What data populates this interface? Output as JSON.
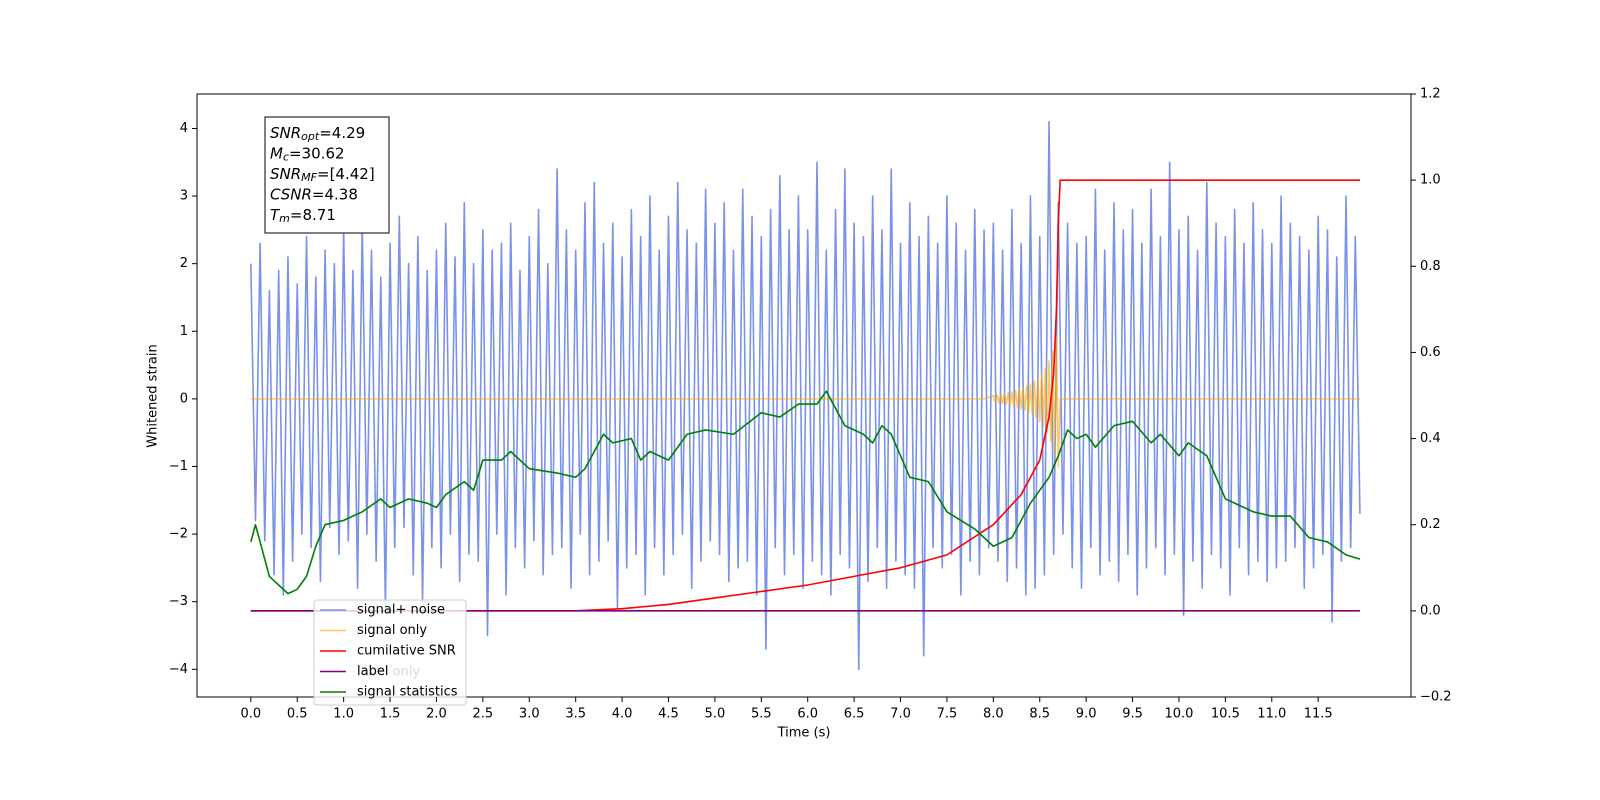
{
  "chart_data": {
    "type": "line",
    "xlabel": "Time (s)",
    "ylabel": "Whitened strain",
    "xlim": [
      -0.58,
      12.5
    ],
    "ylim": [
      -4.41,
      4.51
    ],
    "y2lim": [
      -0.2,
      1.2
    ],
    "xticks": [
      {
        "value": 0,
        "label": "0.0"
      },
      0.5,
      {
        "value": 1,
        "label": "1.0"
      },
      1.5,
      {
        "value": 2,
        "label": "2.0"
      },
      2.5,
      {
        "value": 3,
        "label": "3.0"
      },
      3.5,
      {
        "value": 4,
        "label": "4.0"
      },
      4.5,
      {
        "value": 5,
        "label": "5.0"
      },
      5.5,
      {
        "value": 6,
        "label": "6.0"
      },
      6.5,
      {
        "value": 7,
        "label": "7.0"
      },
      7.5,
      {
        "value": 8,
        "label": "8.0"
      },
      8.5,
      {
        "value": 9,
        "label": "9.0"
      },
      9.5,
      {
        "value": 10,
        "label": "10.0"
      },
      10.5,
      {
        "value": 11,
        "label": "11.0"
      },
      11.5
    ],
    "yticks": [
      {
        "value": -4,
        "label": "−4"
      },
      {
        "value": -3,
        "label": "−3"
      },
      {
        "value": -2,
        "label": "−2"
      },
      {
        "value": -1,
        "label": "−1"
      },
      0,
      1,
      2,
      3,
      4
    ],
    "y2ticks": [
      {
        "value": -0.2,
        "label": "−0.2"
      },
      {
        "value": 0,
        "label": "0.0"
      },
      0.2,
      0.4,
      0.6,
      0.8,
      {
        "value": 1,
        "label": "1.0"
      },
      1.2
    ],
    "legend": "lower left",
    "legend_ghost": "label only",
    "annotation": [
      {
        "base": "SNR",
        "sub": "opt",
        "rest": "=4.29"
      },
      {
        "base": "M",
        "sub": "c",
        "rest": "=30.62"
      },
      {
        "base": "SNR",
        "sub": "MF",
        "rest": "=[4.42]"
      },
      {
        "base": "CSNR",
        "sub": null,
        "rest": "=4.38"
      },
      {
        "base": "T",
        "sub": "m",
        "rest": "=8.71"
      }
    ],
    "series": [
      {
        "name": "signal+ noise",
        "color": "#6f8ae6",
        "alpha": 0.92,
        "x": [
          0,
          0.05,
          0.1,
          0.15,
          0.2,
          0.25,
          0.3,
          0.35,
          0.4,
          0.45,
          0.5,
          0.55,
          0.6,
          0.65,
          0.7,
          0.75,
          0.8,
          0.85,
          0.9,
          0.95,
          1,
          1.05,
          1.1,
          1.15,
          1.2,
          1.25,
          1.3,
          1.35,
          1.4,
          1.45,
          1.5,
          1.55,
          1.6,
          1.65,
          1.7,
          1.75,
          1.8,
          1.85,
          1.9,
          1.95,
          2,
          2.05,
          2.1,
          2.15,
          2.2,
          2.25,
          2.3,
          2.35,
          2.4,
          2.45,
          2.5,
          2.55,
          2.6,
          2.65,
          2.7,
          2.75,
          2.8,
          2.85,
          2.9,
          2.95,
          3,
          3.05,
          3.1,
          3.15,
          3.2,
          3.25,
          3.3,
          3.35,
          3.4,
          3.45,
          3.5,
          3.55,
          3.6,
          3.65,
          3.7,
          3.75,
          3.8,
          3.85,
          3.9,
          3.95,
          4,
          4.05,
          4.1,
          4.15,
          4.2,
          4.25,
          4.3,
          4.35,
          4.4,
          4.45,
          4.5,
          4.55,
          4.6,
          4.65,
          4.7,
          4.75,
          4.8,
          4.85,
          4.9,
          4.95,
          5,
          5.05,
          5.1,
          5.15,
          5.2,
          5.25,
          5.3,
          5.35,
          5.4,
          5.45,
          5.5,
          5.55,
          5.6,
          5.65,
          5.7,
          5.75,
          5.8,
          5.85,
          5.9,
          5.95,
          6,
          6.05,
          6.1,
          6.15,
          6.2,
          6.25,
          6.3,
          6.35,
          6.4,
          6.45,
          6.5,
          6.55,
          6.6,
          6.65,
          6.7,
          6.75,
          6.8,
          6.85,
          6.9,
          6.95,
          7,
          7.05,
          7.1,
          7.15,
          7.2,
          7.25,
          7.3,
          7.35,
          7.4,
          7.45,
          7.5,
          7.55,
          7.6,
          7.65,
          7.7,
          7.75,
          7.8,
          7.85,
          7.9,
          7.95,
          8,
          8.05,
          8.1,
          8.15,
          8.2,
          8.25,
          8.3,
          8.35,
          8.4,
          8.45,
          8.5,
          8.55,
          8.6,
          8.65,
          8.7,
          8.75,
          8.8,
          8.85,
          8.9,
          8.95,
          9,
          9.05,
          9.1,
          9.15,
          9.2,
          9.25,
          9.3,
          9.35,
          9.4,
          9.45,
          9.5,
          9.55,
          9.6,
          9.65,
          9.7,
          9.75,
          9.8,
          9.85,
          9.9,
          9.95,
          10,
          10.05,
          10.1,
          10.15,
          10.2,
          10.25,
          10.3,
          10.35,
          10.4,
          10.45,
          10.5,
          10.55,
          10.6,
          10.65,
          10.7,
          10.75,
          10.8,
          10.85,
          10.9,
          10.95,
          11,
          11.05,
          11.1,
          11.15,
          11.2,
          11.25,
          11.3,
          11.35,
          11.4,
          11.45,
          11.5,
          11.55,
          11.6,
          11.65,
          11.7,
          11.75,
          11.8,
          11.85,
          11.9,
          11.95
        ],
        "values": [
          2.0,
          -1.8,
          2.3,
          -2.1,
          1.6,
          -2.6,
          1.9,
          -2.9,
          2.1,
          -2.4,
          1.7,
          -2.0,
          2.4,
          -2.2,
          1.8,
          -2.7,
          2.2,
          -1.9,
          2.0,
          -2.3,
          2.5,
          -2.1,
          1.9,
          -2.8,
          2.6,
          -2.0,
          2.2,
          -2.4,
          1.8,
          -3.1,
          2.3,
          -2.2,
          2.7,
          -1.9,
          2.0,
          -2.6,
          2.4,
          -3.0,
          1.9,
          -2.2,
          2.2,
          -2.5,
          2.6,
          -2.0,
          2.1,
          -2.7,
          2.9,
          -2.3,
          2.0,
          -2.4,
          2.5,
          -3.5,
          2.2,
          -2.0,
          2.3,
          -2.9,
          2.6,
          -2.2,
          1.9,
          -2.5,
          2.4,
          -2.1,
          2.8,
          -2.6,
          2.0,
          -2.3,
          3.4,
          -2.2,
          2.5,
          -2.8,
          2.2,
          -2.0,
          2.9,
          -2.6,
          3.2,
          -2.4,
          2.3,
          -2.1,
          2.6,
          -3.1,
          2.1,
          -2.5,
          2.8,
          -2.3,
          2.4,
          -2.9,
          3.0,
          -2.2,
          2.2,
          -2.6,
          2.7,
          -2.3,
          3.2,
          -2.0,
          2.5,
          -2.8,
          2.3,
          -2.4,
          3.1,
          -2.1,
          2.6,
          -2.3,
          2.9,
          -2.7,
          2.2,
          -2.5,
          3.1,
          -2.4,
          2.7,
          -2.9,
          2.4,
          -3.7,
          2.8,
          -2.2,
          3.3,
          -2.6,
          2.5,
          -2.3,
          3.0,
          -2.8,
          2.5,
          -2.4,
          3.5,
          -2.6,
          2.2,
          -2.9,
          2.8,
          -2.3,
          3.4,
          -2.5,
          2.6,
          -4.0,
          2.4,
          -2.7,
          3.0,
          -2.2,
          2.5,
          -2.8,
          3.4,
          -2.4,
          2.3,
          -2.6,
          2.9,
          -2.8,
          2.4,
          -3.8,
          2.7,
          -2.2,
          2.3,
          -2.5,
          3.0,
          -2.3,
          2.6,
          -2.9,
          2.2,
          -2.4,
          2.8,
          -2.6,
          2.5,
          -2.2,
          2.6,
          -2.4,
          2.2,
          -2.7,
          2.8,
          -2.5,
          2.3,
          -2.9,
          3.0,
          -2.8,
          2.4,
          -2.6,
          4.1,
          -2.3,
          2.9,
          -2.0,
          2.6,
          -2.5,
          2.3,
          -2.8,
          2.4,
          -2.2,
          3.1,
          -2.6,
          2.2,
          -2.4,
          2.9,
          -2.7,
          2.5,
          -2.3,
          2.8,
          -2.9,
          2.3,
          -2.5,
          3.1,
          -2.2,
          2.4,
          -2.6,
          3.5,
          -2.3,
          2.5,
          -3.2,
          2.7,
          -2.4,
          2.2,
          -2.8,
          3.2,
          -2.3,
          2.6,
          -2.5,
          2.4,
          -2.9,
          2.8,
          -2.2,
          2.3,
          -2.6,
          2.9,
          -2.4,
          2.5,
          -2.7,
          2.3,
          -2.5,
          3.0,
          -2.4,
          2.6,
          -2.2,
          2.4,
          -2.8,
          2.2,
          -2.5,
          2.7,
          -2.3,
          2.5,
          -3.3,
          2.1,
          -2.4,
          3.0,
          -2.2,
          2.4,
          -1.7
        ]
      },
      {
        "name": "signal only",
        "color": "#ffa500",
        "alpha": 0.6,
        "x": [
          0,
          7.9,
          8.0,
          8.02,
          8.04,
          8.06,
          8.08,
          8.1,
          8.12,
          8.14,
          8.16,
          8.18,
          8.2,
          8.22,
          8.24,
          8.26,
          8.28,
          8.3,
          8.32,
          8.34,
          8.36,
          8.38,
          8.4,
          8.42,
          8.44,
          8.46,
          8.48,
          8.5,
          8.52,
          8.54,
          8.56,
          8.58,
          8.6,
          8.62,
          8.64,
          8.66,
          8.68,
          8.7,
          8.72,
          11.95
        ],
        "values": [
          0,
          0,
          0.05,
          -0.05,
          0.06,
          -0.06,
          0.07,
          -0.07,
          0.08,
          -0.08,
          0.09,
          -0.1,
          0.1,
          -0.11,
          0.12,
          -0.13,
          0.14,
          -0.15,
          0.16,
          -0.17,
          0.19,
          -0.2,
          0.22,
          -0.24,
          0.26,
          -0.28,
          0.31,
          -0.34,
          0.37,
          -0.41,
          0.45,
          -0.5,
          0.56,
          -0.63,
          0.7,
          -0.8,
          0.9,
          -1.0,
          0,
          0
        ]
      },
      {
        "name": "cumilative SNR",
        "color": "#ff0000",
        "alpha": 1,
        "axis": "y2",
        "x": [
          0,
          3.5,
          4.0,
          4.5,
          5.0,
          5.5,
          6.0,
          6.5,
          7.0,
          7.5,
          8.0,
          8.3,
          8.5,
          8.6,
          8.65,
          8.68,
          8.7,
          8.72,
          11.95
        ],
        "values": [
          0,
          0,
          0.005,
          0.015,
          0.03,
          0.045,
          0.06,
          0.08,
          0.1,
          0.13,
          0.2,
          0.27,
          0.35,
          0.45,
          0.55,
          0.7,
          0.9,
          1.0,
          1.0
        ]
      },
      {
        "name": "label",
        "color": "#800080",
        "alpha": 1,
        "axis": "y2",
        "x": [
          0,
          11.95
        ],
        "values": [
          0,
          0
        ]
      },
      {
        "name": "signal statistics",
        "color": "#008000",
        "alpha": 1,
        "axis": "y2",
        "x": [
          0,
          0.05,
          0.2,
          0.4,
          0.5,
          0.6,
          0.7,
          0.8,
          1.0,
          1.2,
          1.4,
          1.5,
          1.7,
          1.9,
          2.0,
          2.1,
          2.3,
          2.4,
          2.5,
          2.7,
          2.8,
          3.0,
          3.3,
          3.5,
          3.6,
          3.8,
          3.9,
          4.1,
          4.2,
          4.3,
          4.5,
          4.7,
          4.9,
          5.2,
          5.5,
          5.7,
          5.9,
          6.1,
          6.2,
          6.4,
          6.6,
          6.7,
          6.8,
          6.9,
          7.1,
          7.3,
          7.5,
          7.8,
          8.0,
          8.2,
          8.4,
          8.6,
          8.7,
          8.8,
          8.9,
          9.0,
          9.1,
          9.3,
          9.5,
          9.7,
          9.8,
          10.0,
          10.1,
          10.3,
          10.5,
          10.8,
          11.0,
          11.2,
          11.4,
          11.6,
          11.8,
          11.95
        ],
        "values": [
          0.16,
          0.2,
          0.08,
          0.04,
          0.05,
          0.08,
          0.15,
          0.2,
          0.21,
          0.23,
          0.26,
          0.24,
          0.26,
          0.25,
          0.24,
          0.27,
          0.3,
          0.28,
          0.35,
          0.35,
          0.37,
          0.33,
          0.32,
          0.31,
          0.33,
          0.41,
          0.39,
          0.4,
          0.35,
          0.37,
          0.35,
          0.41,
          0.42,
          0.41,
          0.46,
          0.45,
          0.48,
          0.48,
          0.51,
          0.43,
          0.41,
          0.39,
          0.43,
          0.41,
          0.31,
          0.3,
          0.23,
          0.19,
          0.15,
          0.17,
          0.25,
          0.31,
          0.36,
          0.42,
          0.4,
          0.41,
          0.38,
          0.43,
          0.44,
          0.39,
          0.41,
          0.36,
          0.39,
          0.36,
          0.26,
          0.23,
          0.22,
          0.22,
          0.17,
          0.16,
          0.13,
          0.12
        ]
      }
    ]
  }
}
